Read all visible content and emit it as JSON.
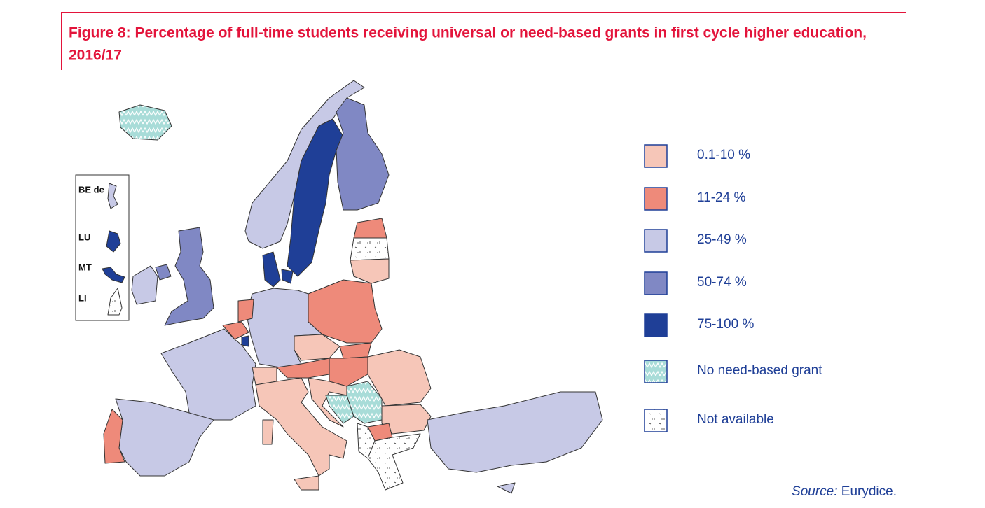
{
  "figure": {
    "title": [
      "Figure 8: Percentage of full-time students receiving universal or need-based grants in first cycle higher education,",
      "2016/17"
    ],
    "insets": [
      "BE de",
      "LU",
      "MT",
      "LI"
    ],
    "legend": [
      {
        "label": "0.1-10 %",
        "color": "#f6c6b8"
      },
      {
        "label": "11-24 %",
        "color": "#ee8a7a"
      },
      {
        "label": "25-49 %",
        "color": "#c7c9e6"
      },
      {
        "label": "50-74 %",
        "color": "#8088c4"
      },
      {
        "label": "75-100 %",
        "color": "#1f3f97"
      },
      {
        "label": "No need-based grant"
      },
      {
        "label": "Not available"
      }
    ],
    "source": {
      "prefix": "Source:",
      "text": "Eurydice."
    }
  }
}
